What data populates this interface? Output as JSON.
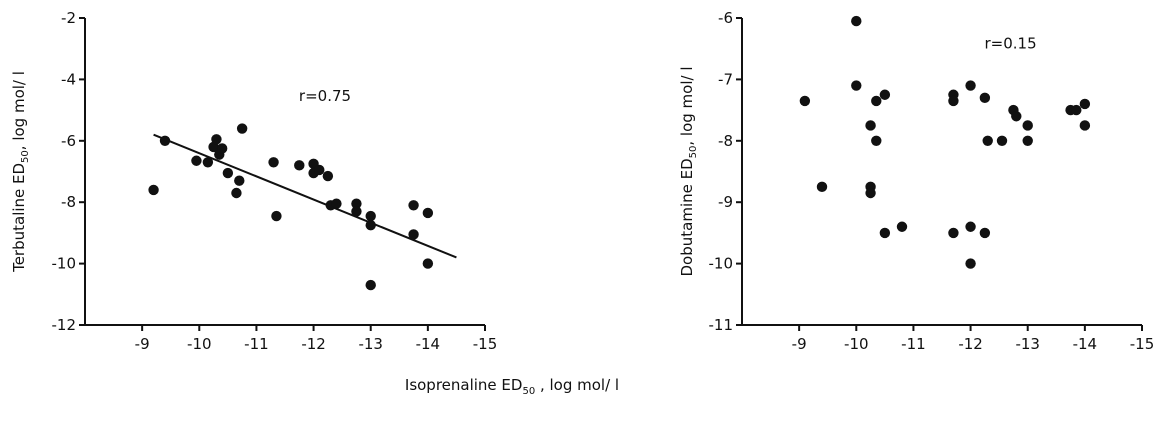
{
  "shared_xlabel": {
    "main": "Isoprenaline ED",
    "sub": "50",
    "rest": " , log mol/ l"
  },
  "chart_data": [
    {
      "type": "scatter",
      "ylabel": {
        "main": "Terbutaline ED",
        "sub": "50",
        "rest": ",  log mol/ l"
      },
      "xlim": [
        -8,
        -15
      ],
      "ylim": [
        -12,
        -2
      ],
      "xticks": [
        -9,
        -10,
        -11,
        -12,
        -13,
        -14,
        -15
      ],
      "yticks": [
        -2,
        -4,
        -6,
        -8,
        -10,
        -12
      ],
      "annotation": "r=0.75",
      "annotation_pos": [
        -12.2,
        -4.7
      ],
      "regression_line": {
        "x": [
          -9.2,
          -14.5
        ],
        "y": [
          -5.8,
          -9.8
        ]
      },
      "points": [
        [
          -9.2,
          -7.6
        ],
        [
          -9.4,
          -6.0
        ],
        [
          -9.95,
          -6.65
        ],
        [
          -10.15,
          -6.7
        ],
        [
          -10.25,
          -6.2
        ],
        [
          -10.3,
          -5.95
        ],
        [
          -10.35,
          -6.45
        ],
        [
          -10.4,
          -6.25
        ],
        [
          -10.5,
          -7.05
        ],
        [
          -10.65,
          -7.7
        ],
        [
          -10.7,
          -7.3
        ],
        [
          -10.75,
          -5.6
        ],
        [
          -11.3,
          -6.7
        ],
        [
          -11.35,
          -8.45
        ],
        [
          -11.75,
          -6.8
        ],
        [
          -12.0,
          -6.75
        ],
        [
          -12.0,
          -7.05
        ],
        [
          -12.1,
          -6.95
        ],
        [
          -12.25,
          -7.15
        ],
        [
          -12.3,
          -8.1
        ],
        [
          -12.4,
          -8.05
        ],
        [
          -12.75,
          -8.05
        ],
        [
          -12.75,
          -8.3
        ],
        [
          -13.0,
          -8.45
        ],
        [
          -13.0,
          -8.75
        ],
        [
          -13.0,
          -10.7
        ],
        [
          -13.75,
          -8.1
        ],
        [
          -13.75,
          -9.05
        ],
        [
          -14.0,
          -8.35
        ],
        [
          -14.0,
          -10.0
        ]
      ]
    },
    {
      "type": "scatter",
      "ylabel": {
        "main": "Dobutamine ED",
        "sub": "50",
        "rest": ",  log mol/ l"
      },
      "xlim": [
        -8,
        -15
      ],
      "ylim": [
        -11,
        -6
      ],
      "xticks": [
        -9,
        -10,
        -11,
        -12,
        -13,
        -14,
        -15
      ],
      "yticks": [
        -6,
        -7,
        -8,
        -9,
        -10,
        -11
      ],
      "annotation": "r=0.15",
      "annotation_pos": [
        -12.7,
        -6.5
      ],
      "points": [
        [
          -9.1,
          -7.35
        ],
        [
          -9.4,
          -8.75
        ],
        [
          -10.0,
          -6.05
        ],
        [
          -10.0,
          -7.1
        ],
        [
          -10.25,
          -7.75
        ],
        [
          -10.25,
          -8.75
        ],
        [
          -10.25,
          -8.85
        ],
        [
          -10.35,
          -7.35
        ],
        [
          -10.35,
          -8.0
        ],
        [
          -10.5,
          -7.25
        ],
        [
          -10.5,
          -9.5
        ],
        [
          -10.8,
          -9.4
        ],
        [
          -11.7,
          -7.25
        ],
        [
          -11.7,
          -7.35
        ],
        [
          -11.7,
          -9.5
        ],
        [
          -12.0,
          -7.1
        ],
        [
          -12.0,
          -9.4
        ],
        [
          -12.0,
          -10.0
        ],
        [
          -12.25,
          -7.3
        ],
        [
          -12.25,
          -9.5
        ],
        [
          -12.3,
          -8.0
        ],
        [
          -12.55,
          -8.0
        ],
        [
          -12.75,
          -7.5
        ],
        [
          -12.8,
          -7.6
        ],
        [
          -13.0,
          -7.75
        ],
        [
          -13.0,
          -8.0
        ],
        [
          -13.75,
          -7.5
        ],
        [
          -13.85,
          -7.5
        ],
        [
          -14.0,
          -7.4
        ],
        [
          -14.0,
          -7.75
        ]
      ]
    }
  ]
}
